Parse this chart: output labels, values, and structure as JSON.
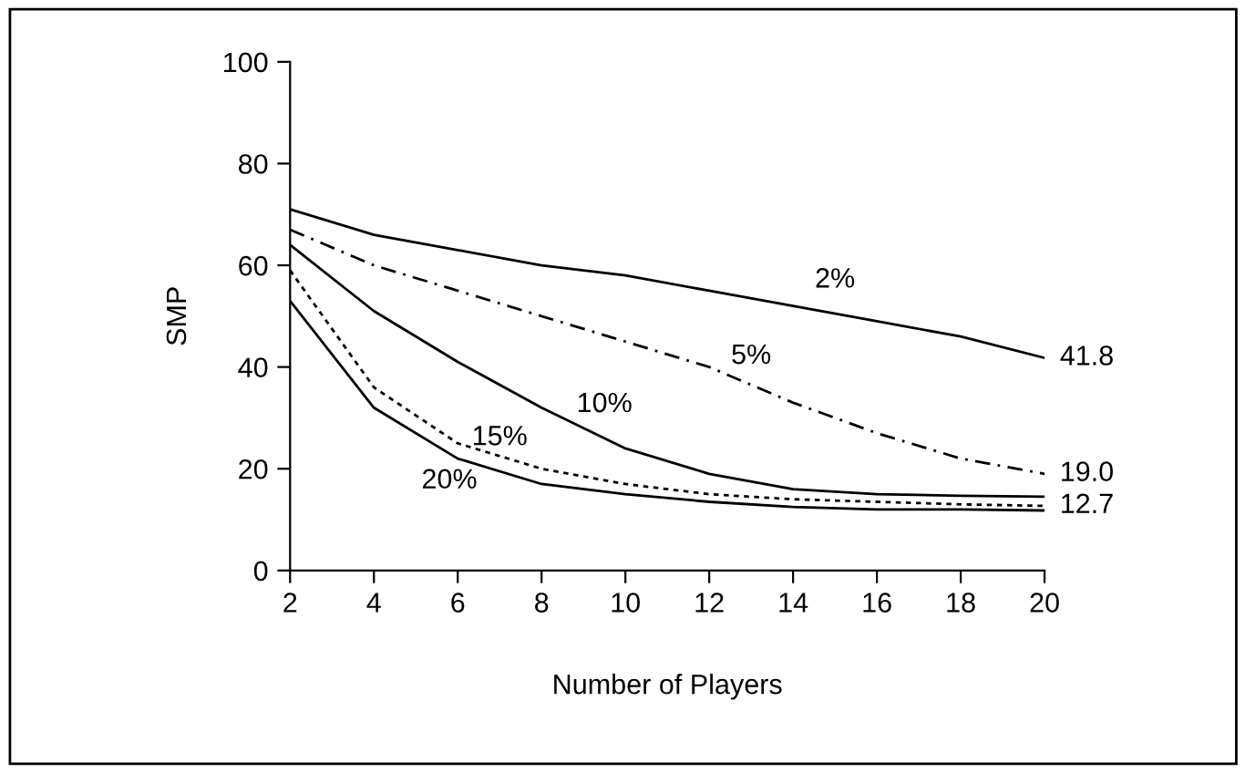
{
  "chart_data": {
    "type": "line",
    "xlabel": "Number of Players",
    "ylabel": "SMP",
    "x": [
      2,
      4,
      6,
      8,
      10,
      12,
      14,
      16,
      18,
      20
    ],
    "series": [
      {
        "name": "2%",
        "color": "#000000",
        "line_style": "solid",
        "values": [
          71,
          66,
          63,
          60,
          58,
          55,
          52,
          49,
          46,
          41.8
        ]
      },
      {
        "name": "5%",
        "color": "#000000",
        "line_style": "dashed",
        "values": [
          67,
          60,
          55,
          50,
          45,
          40,
          33,
          27,
          22,
          19.0
        ]
      },
      {
        "name": "10%",
        "color": "#000000",
        "line_style": "solid",
        "values": [
          64,
          51,
          41,
          32,
          24,
          19,
          16,
          15,
          14.7,
          14.5
        ]
      },
      {
        "name": "15%",
        "color": "#000000",
        "line_style": "dotted",
        "values": [
          59,
          36,
          25,
          20,
          17,
          15,
          14,
          13.5,
          13,
          12.7
        ]
      },
      {
        "name": "20%",
        "color": "#000000",
        "line_style": "solid",
        "values": [
          53,
          32,
          22,
          17,
          15,
          13.5,
          12.5,
          12,
          12,
          11.8
        ]
      }
    ],
    "annotations": [
      "41.8",
      "19.0",
      "12.7"
    ],
    "xlim": [
      2,
      20
    ],
    "xticks": [
      2,
      4,
      6,
      8,
      10,
      12,
      14,
      16,
      18,
      20
    ],
    "ylim": [
      0,
      100
    ],
    "yticks": [
      0,
      20,
      40,
      60,
      80,
      100
    ],
    "grid": false,
    "legend": false,
    "marker": "none"
  }
}
